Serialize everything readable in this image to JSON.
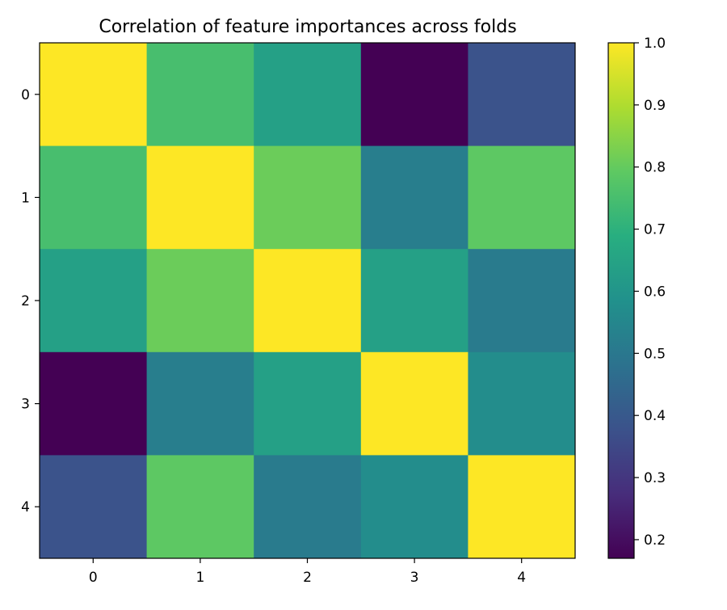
{
  "chart_data": {
    "type": "heatmap",
    "title": "Correlation of feature importances across folds",
    "xlabel": "",
    "ylabel": "",
    "x_categories": [
      "0",
      "1",
      "2",
      "3",
      "4"
    ],
    "y_categories": [
      "0",
      "1",
      "2",
      "3",
      "4"
    ],
    "matrix": [
      [
        1.0,
        0.75,
        0.64,
        0.17,
        0.38
      ],
      [
        0.75,
        1.0,
        0.81,
        0.52,
        0.79
      ],
      [
        0.64,
        0.81,
        1.0,
        0.64,
        0.51
      ],
      [
        0.17,
        0.52,
        0.64,
        1.0,
        0.57
      ],
      [
        0.38,
        0.79,
        0.51,
        0.57,
        1.0
      ]
    ],
    "colormap": "viridis",
    "vmin": 0.17,
    "vmax": 1.0,
    "colorbar_ticks": [
      "0.2",
      "0.3",
      "0.4",
      "0.5",
      "0.6",
      "0.7",
      "0.8",
      "0.9",
      "1.0"
    ],
    "grid": false
  }
}
